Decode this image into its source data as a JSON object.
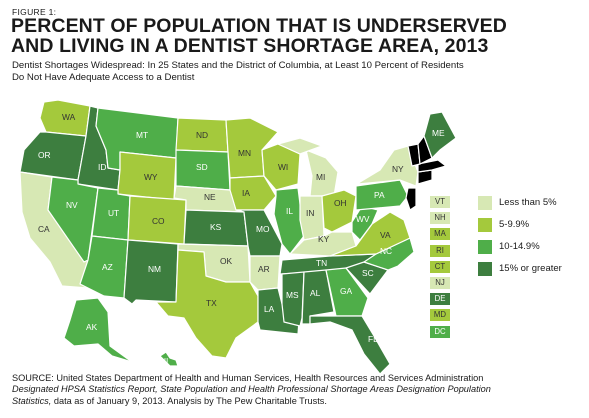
{
  "figure_label": "FIGURE 1:",
  "title_line1": "PERCENT OF POPULATION THAT IS UNDERSERVED",
  "title_line2": "AND LIVING IN A DENTIST SHORTAGE AREA, 2013",
  "subtitle_line1": "Dentist Shortages Widespread: In 25 States and the District of Columbia, at Least 10 Percent of Residents",
  "subtitle_line2": "Do Not Have Adequate Access to a Dentist",
  "colors": {
    "lt5": "#d7e8b4",
    "5to10": "#a4c93c",
    "10to15": "#4fae49",
    "15plus": "#3d7e3f",
    "border": "#ffffff"
  },
  "legend": [
    {
      "label": "Less than 5%",
      "category": "lt5"
    },
    {
      "label": "5-9.9%",
      "category": "5to10"
    },
    {
      "label": "10-14.9%",
      "category": "10to15"
    },
    {
      "label": "15% or greater",
      "category": "15plus"
    }
  ],
  "states": {
    "WA": "5to10",
    "OR": "15plus",
    "CA": "lt5",
    "ID": "15plus",
    "NV": "10to15",
    "MT": "10to15",
    "WY": "5to10",
    "UT": "10to15",
    "AZ": "10to15",
    "CO": "5to10",
    "NM": "15plus",
    "ND": "5to10",
    "SD": "10to15",
    "NE": "lt5",
    "KS": "15plus",
    "OK": "lt5",
    "TX": "5to10",
    "MN": "5to10",
    "IA": "5to10",
    "MO": "15plus",
    "AR": "lt5",
    "LA": "15plus",
    "WI": "5to10",
    "IL": "10to15",
    "MI": "lt5",
    "IN": "lt5",
    "OH": "5to10",
    "KY": "lt5",
    "TN": "15plus",
    "MS": "15plus",
    "AL": "15plus",
    "GA": "10to15",
    "FL": "15plus",
    "SC": "15plus",
    "NC": "10to15",
    "VA": "5to10",
    "WV": "10to15",
    "PA": "10to15",
    "NY": "lt5",
    "ME": "15plus",
    "AK": "10to15",
    "HI": "10to15"
  },
  "small_states": [
    {
      "abbr": "VT",
      "category": "lt5"
    },
    {
      "abbr": "NH",
      "category": "lt5"
    },
    {
      "abbr": "MA",
      "category": "5to10"
    },
    {
      "abbr": "RI",
      "category": "5to10"
    },
    {
      "abbr": "CT",
      "category": "5to10"
    },
    {
      "abbr": "NJ",
      "category": "lt5"
    },
    {
      "abbr": "DE",
      "category": "15plus"
    },
    {
      "abbr": "MD",
      "category": "5to10"
    },
    {
      "abbr": "DC",
      "category": "10to15"
    }
  ],
  "source_line1": "SOURCE: United States Department of Health and Human Services, Health Resources and Services Administration",
  "source_line2": "Designated HPSA Statistics Report, State Population and Health Professional Shortage Areas Designation Population",
  "source_line3_italic": "Statistics,",
  "source_line3_rest": " data as of January 9, 2013.  Analysis by The Pew Charitable Trusts."
}
